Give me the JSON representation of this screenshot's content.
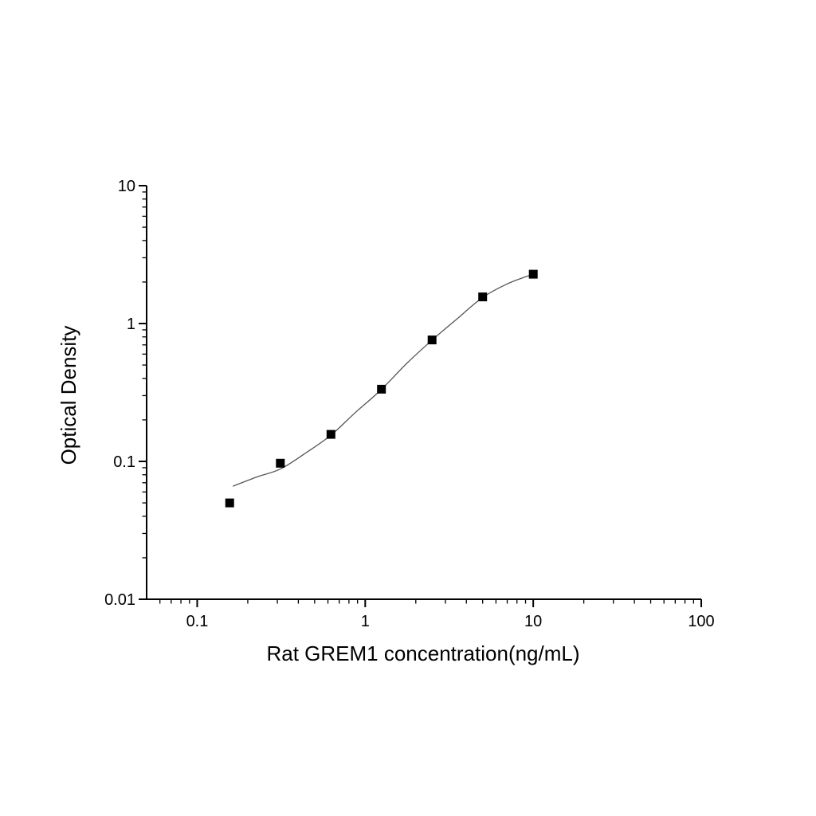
{
  "figure": {
    "background": "#ffffff",
    "axis_color": "#000000",
    "text_color": "#000000"
  },
  "chart_data": {
    "type": "scatter",
    "title": "",
    "xlabel": "Rat GREM1 concentration(ng/mL)",
    "ylabel": "Optical Density",
    "x_scale": "log",
    "y_scale": "log",
    "xlim": [
      0.05,
      100
    ],
    "ylim": [
      0.01,
      10
    ],
    "x_tick_values": [
      0.1,
      1,
      10,
      100
    ],
    "x_tick_labels": [
      "0.1",
      "1",
      "10",
      "100"
    ],
    "y_tick_values": [
      0.01,
      0.1,
      1,
      10
    ],
    "y_tick_labels": [
      "0.01",
      "0.1",
      "1",
      "10"
    ],
    "grid": false,
    "legend": "none",
    "series": [
      {
        "name": "standards",
        "marker": "filled-square",
        "marker_color": "#000000",
        "marker_size": 11,
        "x": [
          0.156,
          0.3125,
          0.625,
          1.25,
          2.5,
          5,
          10
        ],
        "y": [
          0.05,
          0.097,
          0.157,
          0.334,
          0.76,
          1.56,
          2.28
        ]
      }
    ],
    "fit_curve": {
      "name": "4pl-fit-curve",
      "color": "#555555",
      "width": 1.3,
      "x": [
        0.163,
        0.226,
        0.3125,
        0.442,
        0.625,
        0.884,
        1.25,
        1.77,
        2.5,
        3.54,
        5.0,
        7.07,
        10.0
      ],
      "y": [
        0.066,
        0.077,
        0.088,
        0.115,
        0.155,
        0.229,
        0.333,
        0.515,
        0.758,
        1.087,
        1.545,
        1.948,
        2.28
      ]
    }
  }
}
